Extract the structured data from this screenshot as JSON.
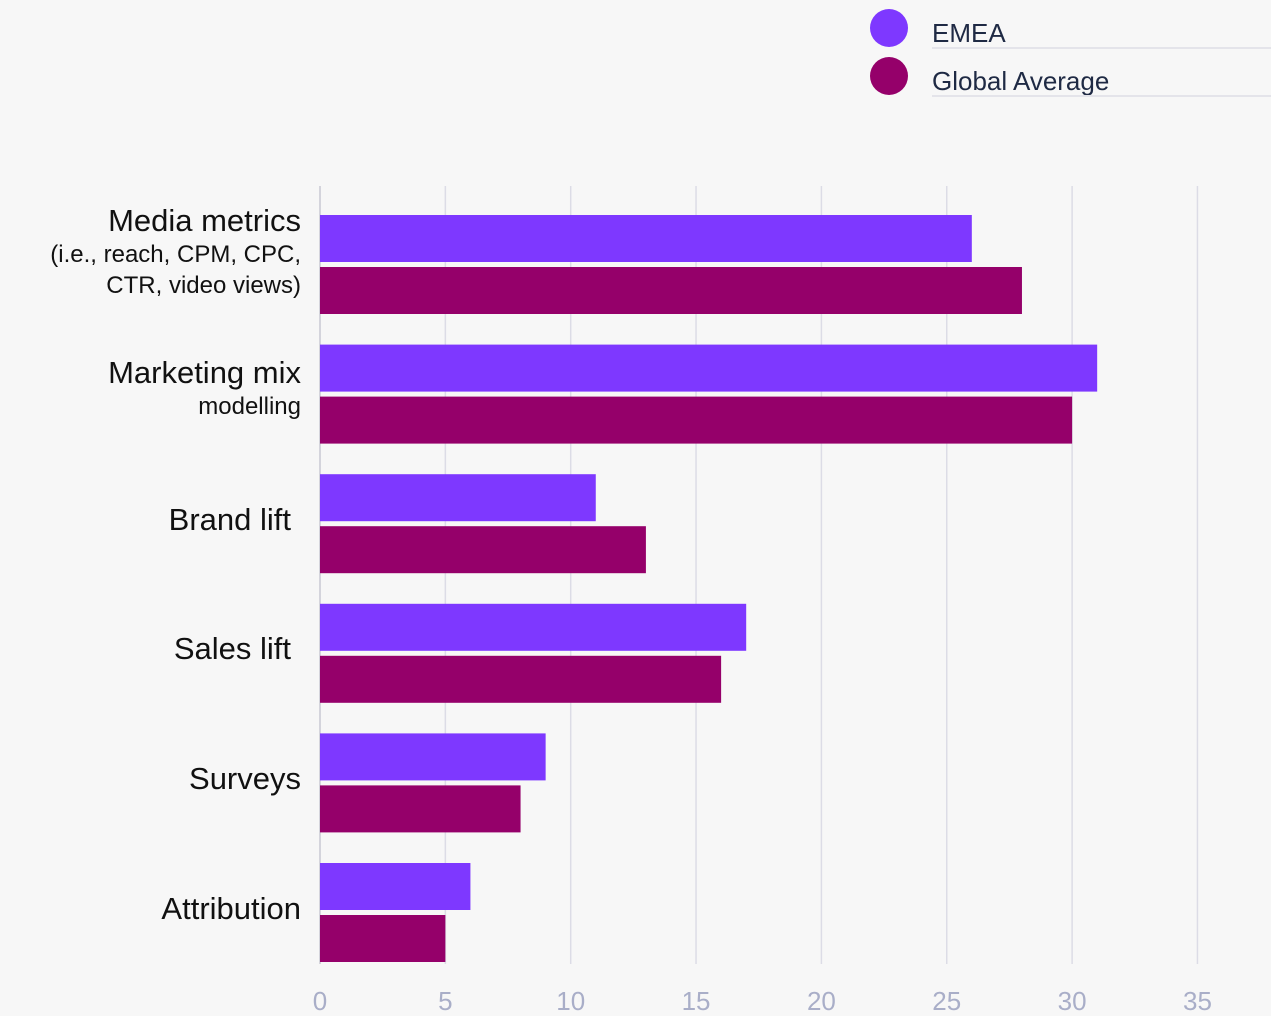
{
  "chart_data": {
    "type": "bar",
    "orientation": "horizontal",
    "categories": [
      [
        "Media metrics",
        "(i.e., reach, CPM, CPC,",
        "CTR, video views)"
      ],
      [
        "Marketing mix",
        "modelling"
      ],
      [
        "Brand lift"
      ],
      [
        "Sales lift"
      ],
      [
        "Surveys"
      ],
      [
        "Attribution"
      ]
    ],
    "series": [
      {
        "name": "EMEA",
        "color": "#7e38ff",
        "values": [
          26,
          31,
          11,
          17,
          9,
          6
        ]
      },
      {
        "name": "Global Average",
        "color": "#95006a",
        "values": [
          28,
          30,
          13,
          16,
          8,
          5
        ]
      }
    ],
    "xlim": [
      0,
      35
    ],
    "xticks": [
      "0",
      "5",
      "10",
      "15",
      "20",
      "25",
      "30",
      "35"
    ],
    "grid": true,
    "legend_position": "top-right",
    "title": "",
    "xlabel": "",
    "ylabel": ""
  }
}
